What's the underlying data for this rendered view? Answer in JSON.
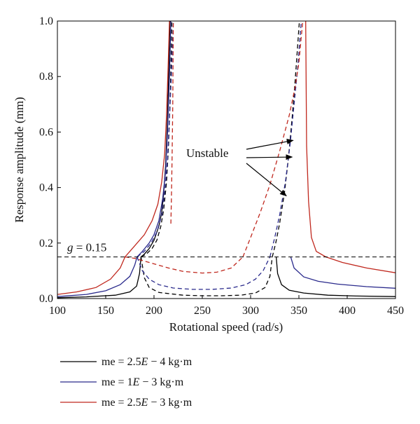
{
  "chart_data": {
    "type": "line",
    "xlabel": "Rotational speed (rad/s)",
    "ylabel": "Response amplitude (mm)",
    "xlim": [
      100,
      450
    ],
    "ylim": [
      0,
      1.0
    ],
    "x_ticks": [
      "100",
      "150",
      "200",
      "250",
      "300",
      "350",
      "400",
      "450"
    ],
    "y_ticks": [
      "0.0",
      "0.2",
      "0.4",
      "0.6",
      "0.8",
      "1.0"
    ],
    "grid": false,
    "legend_position": "bottom",
    "reference_line": {
      "label": "g = 0.15",
      "label_var": "g",
      "label_rest": " = 0.15",
      "y": 0.15,
      "style": "dashed"
    },
    "annotation": {
      "text": "Unstable",
      "targets": [
        [
          344,
          0.57
        ],
        [
          343,
          0.51
        ],
        [
          337,
          0.37
        ]
      ]
    },
    "series": [
      {
        "name": "me = 2.5E − 4 kg·m",
        "name_parts": [
          "me = 2.5",
          "E",
          " − 4 kg·m"
        ],
        "color": "#000000",
        "stable_left": [
          [
            100,
            0.003
          ],
          [
            130,
            0.006
          ],
          [
            160,
            0.012
          ],
          [
            175,
            0.024
          ],
          [
            182,
            0.045
          ],
          [
            185,
            0.09
          ],
          [
            186.5,
            0.15
          ],
          [
            190,
            0.16
          ],
          [
            195,
            0.18
          ],
          [
            200,
            0.21
          ],
          [
            205,
            0.26
          ],
          [
            208,
            0.31
          ],
          [
            210,
            0.38
          ],
          [
            212,
            0.48
          ],
          [
            214,
            0.65
          ],
          [
            215.5,
            0.85
          ],
          [
            216.5,
            1.0
          ]
        ],
        "unstable_upper": [
          [
            186.5,
            0.15
          ],
          [
            192,
            0.16
          ],
          [
            198,
            0.18
          ],
          [
            203,
            0.21
          ],
          [
            207,
            0.26
          ],
          [
            210,
            0.32
          ],
          [
            213,
            0.42
          ],
          [
            215,
            0.55
          ],
          [
            217,
            0.75
          ],
          [
            218.5,
            1.0
          ]
        ],
        "unstable_bottom": [
          [
            186.5,
            0.15
          ],
          [
            190,
            0.075
          ],
          [
            195,
            0.04
          ],
          [
            205,
            0.022
          ],
          [
            230,
            0.012
          ],
          [
            250,
            0.01
          ],
          [
            270,
            0.01
          ],
          [
            290,
            0.012
          ],
          [
            305,
            0.02
          ],
          [
            315,
            0.04
          ],
          [
            320,
            0.08
          ],
          [
            322.5,
            0.15
          ]
        ],
        "unstable_right": [
          [
            322.5,
            0.15
          ],
          [
            326,
            0.2
          ],
          [
            330,
            0.27
          ],
          [
            335,
            0.38
          ],
          [
            339,
            0.5
          ],
          [
            343,
            0.65
          ],
          [
            346,
            0.78
          ],
          [
            348.5,
            0.9
          ],
          [
            350.5,
            1.0
          ]
        ],
        "stable_right": [
          [
            326.5,
            0.15
          ],
          [
            328,
            0.09
          ],
          [
            332,
            0.05
          ],
          [
            340,
            0.03
          ],
          [
            355,
            0.02
          ],
          [
            380,
            0.012
          ],
          [
            410,
            0.009
          ],
          [
            450,
            0.007
          ]
        ]
      },
      {
        "name": "me = 1E − 3 kg·m",
        "name_parts": [
          "me = 1",
          "E",
          " − 3 kg·m"
        ],
        "color": "#2a2a8c",
        "stable_left": [
          [
            100,
            0.007
          ],
          [
            130,
            0.015
          ],
          [
            150,
            0.028
          ],
          [
            165,
            0.05
          ],
          [
            175,
            0.08
          ],
          [
            180,
            0.12
          ],
          [
            182.5,
            0.15
          ],
          [
            188,
            0.17
          ],
          [
            195,
            0.2
          ],
          [
            200,
            0.23
          ],
          [
            205,
            0.28
          ],
          [
            209,
            0.36
          ],
          [
            212,
            0.46
          ],
          [
            214,
            0.6
          ],
          [
            216,
            0.8
          ],
          [
            217.5,
            1.0
          ]
        ],
        "unstable_upper": [
          [
            182.5,
            0.15
          ],
          [
            190,
            0.17
          ],
          [
            197,
            0.2
          ],
          [
            203,
            0.24
          ],
          [
            208,
            0.3
          ],
          [
            211,
            0.38
          ],
          [
            214,
            0.5
          ],
          [
            216,
            0.65
          ],
          [
            218,
            0.8
          ],
          [
            220,
            1.0
          ]
        ],
        "unstable_bottom": [
          [
            182.5,
            0.15
          ],
          [
            188,
            0.1
          ],
          [
            195,
            0.07
          ],
          [
            205,
            0.05
          ],
          [
            220,
            0.038
          ],
          [
            240,
            0.033
          ],
          [
            260,
            0.033
          ],
          [
            280,
            0.038
          ],
          [
            295,
            0.05
          ],
          [
            305,
            0.07
          ],
          [
            313,
            0.1
          ],
          [
            320,
            0.15
          ]
        ],
        "unstable_right": [
          [
            320,
            0.15
          ],
          [
            325,
            0.22
          ],
          [
            330,
            0.3
          ],
          [
            336,
            0.42
          ],
          [
            341,
            0.56
          ],
          [
            345,
            0.7
          ],
          [
            349,
            0.84
          ],
          [
            352.5,
            1.0
          ]
        ],
        "stable_right": [
          [
            341.5,
            0.15
          ],
          [
            345,
            0.11
          ],
          [
            355,
            0.078
          ],
          [
            370,
            0.062
          ],
          [
            390,
            0.052
          ],
          [
            420,
            0.043
          ],
          [
            450,
            0.037
          ]
        ]
      },
      {
        "name": "me = 2.5E − 3 kg·m",
        "name_parts": [
          "me = 2.5",
          "E",
          " − 3 kg·m"
        ],
        "color": "#c0281e",
        "stable_left": [
          [
            100,
            0.015
          ],
          [
            120,
            0.024
          ],
          [
            140,
            0.04
          ],
          [
            155,
            0.07
          ],
          [
            165,
            0.11
          ],
          [
            170,
            0.15
          ],
          [
            180,
            0.19
          ],
          [
            190,
            0.23
          ],
          [
            198,
            0.28
          ],
          [
            204,
            0.34
          ],
          [
            208,
            0.42
          ],
          [
            211,
            0.52
          ],
          [
            213,
            0.66
          ],
          [
            214.5,
            0.82
          ],
          [
            216,
            1.0
          ]
        ],
        "unstable_upper": [
          [
            217.5,
            0.27
          ],
          [
            218,
            0.35
          ],
          [
            218.7,
            0.5
          ],
          [
            219.4,
            0.7
          ],
          [
            220,
            1.0
          ]
        ],
        "unstable_bottom": [
          [
            170,
            0.15
          ],
          [
            180,
            0.145
          ],
          [
            190,
            0.135
          ],
          [
            200,
            0.125
          ],
          [
            215,
            0.11
          ],
          [
            230,
            0.098
          ],
          [
            250,
            0.092
          ],
          [
            265,
            0.095
          ],
          [
            280,
            0.11
          ],
          [
            292,
            0.15
          ]
        ],
        "unstable_right": [
          [
            292,
            0.15
          ],
          [
            300,
            0.22
          ],
          [
            310,
            0.31
          ],
          [
            320,
            0.41
          ],
          [
            330,
            0.53
          ],
          [
            340,
            0.66
          ],
          [
            346,
            0.76
          ],
          [
            350,
            0.85
          ],
          [
            354,
            1.0
          ]
        ],
        "stable_right": [
          [
            357,
            1.0
          ],
          [
            358,
            0.55
          ],
          [
            360,
            0.35
          ],
          [
            363,
            0.22
          ],
          [
            368,
            0.17
          ],
          [
            378,
            0.15
          ],
          [
            395,
            0.13
          ],
          [
            420,
            0.11
          ],
          [
            450,
            0.093
          ]
        ]
      }
    ]
  }
}
